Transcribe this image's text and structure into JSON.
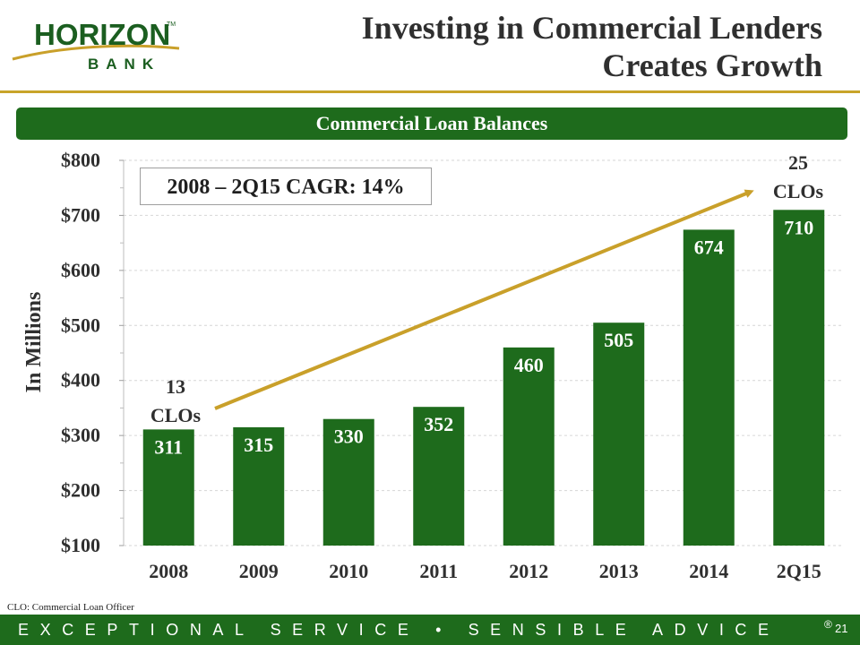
{
  "logo": {
    "main": "HORIZON",
    "tm": "TM",
    "sub": "BANK"
  },
  "title_line1": "Investing in Commercial Lenders",
  "title_line2": "Creates Growth",
  "banner": "Commercial Loan Balances",
  "cagr_box": "2008 – 2Q15 CAGR: 14%",
  "annotations": {
    "start": {
      "line1": "13",
      "line2": "CLOs"
    },
    "end": {
      "line1": "25",
      "line2": "CLOs"
    }
  },
  "footnote": "CLO: Commercial Loan Officer",
  "footer": {
    "tagline": "EXCEPTIONAL SERVICE • SENSIBLE ADVICE",
    "reg": "®",
    "page": "21"
  },
  "colors": {
    "bar": "#1e6b1c",
    "arrow": "#c9a02a",
    "banner": "#1e6b1c"
  },
  "chart_data": {
    "type": "bar",
    "title": "Commercial Loan Balances",
    "ylabel": "In Millions",
    "xlabel": "",
    "categories": [
      "2008",
      "2009",
      "2010",
      "2011",
      "2012",
      "2013",
      "2014",
      "2Q15"
    ],
    "values": [
      311,
      315,
      330,
      352,
      460,
      505,
      674,
      710
    ],
    "data_labels": [
      "311",
      "315",
      "330",
      "352",
      "460",
      "505",
      "674",
      "710"
    ],
    "ylim": [
      100,
      800
    ],
    "yticks": [
      100,
      200,
      300,
      400,
      500,
      600,
      700,
      800
    ],
    "ytick_labels": [
      "$100",
      "$200",
      "$300",
      "$400",
      "$500",
      "$600",
      "$700",
      "$800"
    ],
    "grid": true,
    "legend": "none"
  }
}
